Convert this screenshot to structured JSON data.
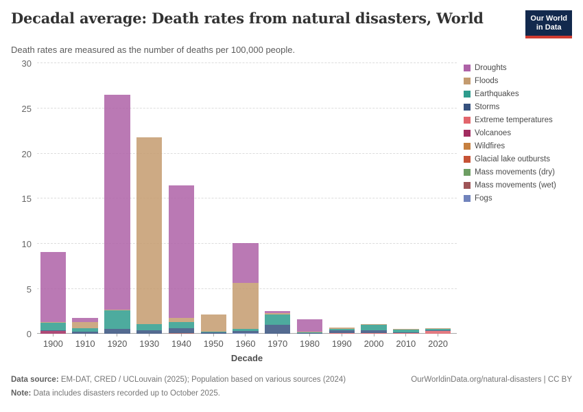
{
  "header": {
    "title": "Decadal average: Death rates from natural disasters, World",
    "subtitle": "Death rates are measured as the number of deaths per 100,000 people.",
    "logo": {
      "line1": "Our World",
      "line2": "in Data",
      "bg_color": "#12294d",
      "accent_color": "#cf3b30"
    }
  },
  "chart_data": {
    "type": "bar",
    "stacked": true,
    "title": "Decadal average: Death rates from natural disasters, World",
    "xlabel": "Decade",
    "ylabel": "",
    "ylim": [
      0,
      30
    ],
    "yticks": [
      0,
      5,
      10,
      15,
      20,
      25,
      30
    ],
    "grid": "horizontal-dashed",
    "legend_position": "right",
    "categories": [
      "1900",
      "1910",
      "1920",
      "1930",
      "1940",
      "1950",
      "1960",
      "1970",
      "1980",
      "1990",
      "2000",
      "2010",
      "2020"
    ],
    "stack_order_bottom_to_top": [
      "Fogs",
      "Mass movements (wet)",
      "Mass movements (dry)",
      "Glacial lake outbursts",
      "Wildfires",
      "Volcanoes",
      "Extreme temperatures",
      "Storms",
      "Earthquakes",
      "Floods",
      "Droughts"
    ],
    "series": [
      {
        "name": "Droughts",
        "color": "#ae62a7",
        "values": [
          7.75,
          0.42,
          23.85,
          0,
          14.75,
          0,
          4.4,
          0.22,
          1.35,
          0,
          0,
          0,
          0
        ]
      },
      {
        "name": "Floods",
        "color": "#c49b6f",
        "values": [
          0.05,
          0.7,
          0.05,
          20.7,
          0.45,
          1.9,
          5.15,
          0.12,
          0.07,
          0.18,
          0.09,
          0.06,
          0.06
        ]
      },
      {
        "name": "Earthquakes",
        "color": "#2e9c8d",
        "values": [
          0.85,
          0.35,
          2.0,
          0.7,
          0.65,
          0.07,
          0.18,
          1.15,
          0.08,
          0.12,
          0.62,
          0.33,
          0.1
        ]
      },
      {
        "name": "Storms",
        "color": "#36517e",
        "values": [
          0.08,
          0.28,
          0.6,
          0.4,
          0.55,
          0.15,
          0.25,
          1.05,
          0.1,
          0.33,
          0.27,
          0.04,
          0.04
        ]
      },
      {
        "name": "Extreme temperatures",
        "color": "#e2656c",
        "values": [
          0,
          0,
          0,
          0,
          0,
          0,
          0,
          0,
          0,
          0.05,
          0.12,
          0.08,
          0.35
        ]
      },
      {
        "name": "Volcanoes",
        "color": "#a22c60",
        "values": [
          0.3,
          0,
          0,
          0,
          0,
          0,
          0,
          0,
          0,
          0,
          0,
          0,
          0
        ]
      },
      {
        "name": "Wildfires",
        "color": "#c67f3f",
        "values": [
          0,
          0,
          0,
          0,
          0,
          0,
          0,
          0,
          0,
          0,
          0,
          0,
          0
        ]
      },
      {
        "name": "Glacial lake outbursts",
        "color": "#c65336",
        "values": [
          0,
          0,
          0,
          0,
          0,
          0,
          0,
          0,
          0,
          0,
          0,
          0,
          0
        ]
      },
      {
        "name": "Mass movements (dry)",
        "color": "#6d9e63",
        "values": [
          0,
          0,
          0,
          0,
          0,
          0,
          0,
          0,
          0,
          0,
          0,
          0,
          0
        ]
      },
      {
        "name": "Mass movements (wet)",
        "color": "#9e5457",
        "values": [
          0,
          0,
          0,
          0,
          0.1,
          0,
          0,
          0,
          0,
          0,
          0,
          0,
          0
        ]
      },
      {
        "name": "Fogs",
        "color": "#7183bc",
        "values": [
          0,
          0,
          0,
          0,
          0,
          0,
          0.12,
          0,
          0,
          0,
          0,
          0,
          0
        ]
      }
    ]
  },
  "footer": {
    "data_source_label": "Data source: ",
    "data_source_text": "EM-DAT, CRED / UCLouvain (2025); Population based on various sources (2024)",
    "link_text": "OurWorldinData.org/natural-disasters | CC BY",
    "note_label": "Note: ",
    "note_text": "Data includes disasters recorded up to October 2025."
  }
}
